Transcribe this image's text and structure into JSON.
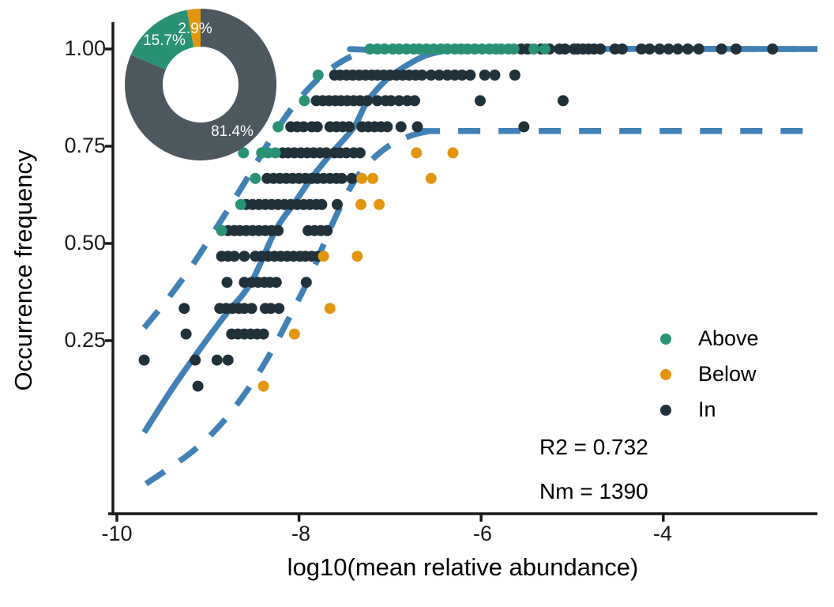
{
  "figure": {
    "colors": {
      "above": "#2a9274",
      "below": "#e2960f",
      "in": "#20313a",
      "fit_line": "#4181b6",
      "donut_in": "#4c575e",
      "axis": "#1a1a1a",
      "background": "#ffffff"
    },
    "x_axis": {
      "label": "log10(mean relative abundance)",
      "ticks": [
        "-10",
        "-8",
        "-6",
        "-4"
      ]
    },
    "y_axis": {
      "label": "Occurrence frequency",
      "ticks": [
        "1.00",
        "0.75",
        "0.50",
        "0.25"
      ]
    },
    "legend": {
      "items": [
        {
          "label": "Above",
          "color_key": "above"
        },
        {
          "label": "Below",
          "color_key": "below"
        },
        {
          "label": "In",
          "color_key": "in"
        }
      ]
    },
    "stats": {
      "r2": "R2 = 0.732",
      "nm": "Nm = 1390"
    },
    "donut": {
      "labels": [
        "81.4%",
        "15.7%",
        "2.9%"
      ]
    }
  },
  "chart_data": {
    "type": "scatter",
    "title": "",
    "xlabel": "log10(mean relative abundance)",
    "ylabel": "Occurrence frequency",
    "xlim": [
      -10.1,
      -2.3
    ],
    "ylim": [
      -0.195,
      1.065
    ],
    "xticks": [
      -10,
      -8,
      -6,
      -4
    ],
    "yticks": [
      1.0,
      0.75,
      0.5,
      0.25
    ],
    "grid": false,
    "legend_position": "right-middle",
    "stats": {
      "R2": 0.732,
      "Nm": 1390
    },
    "donut": {
      "center_note": "inset donut, fraction of points vs neutral prediction",
      "segments": [
        {
          "name": "In",
          "pct": 81.4
        },
        {
          "name": "Above",
          "pct": 15.7
        },
        {
          "name": "Below",
          "pct": 2.9
        }
      ]
    },
    "fit_curve": [
      [
        -9.7,
        0.014
      ],
      [
        -9.4,
        0.124
      ],
      [
        -9.11,
        0.221
      ],
      [
        -8.82,
        0.313
      ],
      [
        -8.53,
        0.398
      ],
      [
        -8.26,
        0.533
      ],
      [
        -8.05,
        0.604
      ],
      [
        -7.86,
        0.669
      ],
      [
        -7.64,
        0.733
      ],
      [
        -7.4,
        0.798
      ],
      [
        -7.25,
        0.865
      ],
      [
        -7.03,
        0.923
      ],
      [
        -6.81,
        0.959
      ],
      [
        -6.6,
        0.984
      ],
      [
        -6.38,
        0.996
      ],
      [
        -6.16,
        1.0
      ],
      [
        -2.3,
        1.0
      ]
    ],
    "ci_upper": [
      [
        -9.7,
        0.283
      ],
      [
        -9.42,
        0.364
      ],
      [
        -9.14,
        0.455
      ],
      [
        -8.85,
        0.561
      ],
      [
        -8.58,
        0.663
      ],
      [
        -8.29,
        0.776
      ],
      [
        -8.03,
        0.862
      ],
      [
        -7.77,
        0.927
      ],
      [
        -7.51,
        0.971
      ],
      [
        -7.25,
        0.996
      ],
      [
        -7.03,
        1.0
      ],
      [
        -2.3,
        1.0
      ]
    ],
    "ci_lower": [
      [
        -9.68,
        -0.118
      ],
      [
        -9.42,
        -0.077
      ],
      [
        -9.16,
        -0.033
      ],
      [
        -8.9,
        0.024
      ],
      [
        -8.64,
        0.099
      ],
      [
        -8.38,
        0.191
      ],
      [
        -8.12,
        0.303
      ],
      [
        -7.86,
        0.425
      ],
      [
        -7.64,
        0.547
      ],
      [
        -7.44,
        0.642
      ],
      [
        -7.25,
        0.703
      ],
      [
        -7.03,
        0.748
      ],
      [
        -6.81,
        0.774
      ],
      [
        -6.6,
        0.787
      ],
      [
        -6.38,
        0.789
      ],
      [
        -2.3,
        0.789
      ]
    ],
    "rows": [
      {
        "freq": 1.0,
        "above": [
          -7.22,
          -7.14,
          -7.06,
          -6.97,
          -6.9,
          -6.82,
          -6.74,
          -6.68,
          -6.6,
          -6.52,
          -6.44,
          -6.37,
          -6.29,
          -6.22,
          -6.15,
          -6.07,
          -5.99,
          -5.91,
          -5.84,
          -5.78,
          -5.7,
          -5.64,
          -5.42,
          -5.3
        ],
        "in": [
          -5.56,
          -5.49,
          -5.34,
          -5.25,
          -5.14,
          -5.08,
          -4.98,
          -4.94,
          -4.88,
          -4.82,
          -4.76,
          -4.69,
          -4.53,
          -4.45,
          -4.24,
          -4.15,
          -4.04,
          -3.94,
          -3.84,
          -3.73,
          -3.61,
          -3.36,
          -3.2,
          -2.8
        ],
        "below": []
      },
      {
        "freq": 0.933,
        "above": [
          -7.79
        ],
        "in": [
          -7.61,
          -7.55,
          -7.48,
          -7.41,
          -7.34,
          -7.27,
          -7.2,
          -7.14,
          -7.07,
          -7.0,
          -6.93,
          -6.86,
          -6.79,
          -6.72,
          -6.65,
          -6.55,
          -6.46,
          -6.37,
          -6.29,
          -6.21,
          -6.12,
          -5.96,
          -5.85,
          -5.63
        ],
        "below": []
      },
      {
        "freq": 0.867,
        "above": [
          -7.94
        ],
        "in": [
          -7.81,
          -7.74,
          -7.67,
          -7.6,
          -7.54,
          -7.47,
          -7.4,
          -7.33,
          -7.25,
          -7.14,
          -7.05,
          -6.99,
          -6.9,
          -6.81,
          -6.73,
          -6.01,
          -5.1
        ],
        "below": []
      },
      {
        "freq": 0.8,
        "above": [
          -8.23
        ],
        "in": [
          -8.09,
          -8.02,
          -7.95,
          -7.86,
          -7.8,
          -7.66,
          -7.59,
          -7.52,
          -7.45,
          -7.31,
          -7.24,
          -7.17,
          -7.1,
          -7.03,
          -6.88,
          -6.7,
          -5.53
        ],
        "below": []
      },
      {
        "freq": 0.733,
        "above": [
          -8.61,
          -8.41,
          -8.34,
          -8.26
        ],
        "in": [
          -8.18,
          -8.12,
          -8.05,
          -7.98,
          -7.91,
          -7.84,
          -7.77,
          -7.7,
          -7.61,
          -7.55,
          -7.48,
          -7.4,
          -7.33
        ],
        "below": [
          -6.71,
          -6.31
        ]
      },
      {
        "freq": 0.667,
        "above": [
          -8.48
        ],
        "in": [
          -8.35,
          -8.28,
          -8.21,
          -8.14,
          -8.07,
          -8.0,
          -7.93,
          -7.86,
          -7.8,
          -7.73,
          -7.66,
          -7.59,
          -7.53,
          -7.42
        ],
        "below": [
          -7.31,
          -7.19,
          -6.55
        ]
      },
      {
        "freq": 0.6,
        "above": [
          -8.64
        ],
        "in": [
          -8.58,
          -8.51,
          -8.44,
          -8.37,
          -8.3,
          -8.23,
          -8.16,
          -8.09,
          -8.02,
          -7.95,
          -7.88,
          -7.81,
          -7.75,
          -7.58
        ],
        "below": [
          -7.32,
          -7.12
        ]
      },
      {
        "freq": 0.533,
        "above": [
          -8.85
        ],
        "in": [
          -8.78,
          -8.71,
          -8.65,
          -8.58,
          -8.51,
          -8.44,
          -8.37,
          -8.3,
          -8.23,
          -7.9,
          -7.83,
          -7.76,
          -7.69
        ],
        "below": []
      },
      {
        "freq": 0.467,
        "above": [],
        "in": [
          -8.85,
          -8.78,
          -8.71,
          -8.6,
          -8.48,
          -8.41,
          -8.34,
          -8.27,
          -8.2,
          -8.13,
          -8.06,
          -7.99,
          -7.93,
          -7.86,
          -7.79
        ],
        "below": [
          -7.73,
          -7.36
        ]
      },
      {
        "freq": 0.4,
        "above": [],
        "in": [
          -8.79,
          -8.6,
          -8.52,
          -8.45,
          -8.38,
          -8.32,
          -8.25,
          -7.92
        ],
        "below": []
      },
      {
        "freq": 0.333,
        "above": [],
        "in": [
          -9.26,
          -8.87,
          -8.8,
          -8.73,
          -8.66,
          -8.6,
          -8.52,
          -8.37,
          -8.31,
          -8.22
        ],
        "below": [
          -7.66
        ]
      },
      {
        "freq": 0.267,
        "above": [],
        "in": [
          -9.24,
          -8.74,
          -8.67,
          -8.6,
          -8.53,
          -8.46,
          -8.39
        ],
        "below": [
          -8.05
        ]
      },
      {
        "freq": 0.2,
        "above": [],
        "in": [
          -9.7,
          -9.14,
          -8.9,
          -8.78
        ],
        "below": []
      },
      {
        "freq": 0.133,
        "above": [],
        "in": [
          -9.11
        ],
        "below": [
          -8.39
        ]
      }
    ]
  }
}
